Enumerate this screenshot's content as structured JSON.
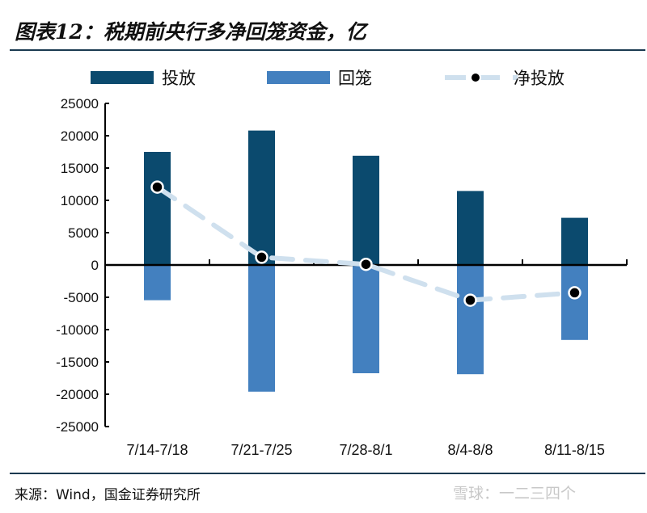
{
  "title": "图表12：税期前央行多净回笼资金，亿",
  "source": "来源：Wind，国金证券研究所",
  "watermark": "雪球：一二三四个",
  "chart_data": {
    "type": "bar",
    "title": "图表12：税期前央行多净回笼资金，亿",
    "categories": [
      "7/14-7/18",
      "7/21-7/25",
      "7/28-8/1",
      "8/4-8/8",
      "8/11-8/15"
    ],
    "series": [
      {
        "name": "投放",
        "type": "bar",
        "color": "#0b4a6e",
        "values": [
          17500,
          20800,
          16900,
          11450,
          7300
        ]
      },
      {
        "name": "回笼",
        "type": "bar",
        "color": "#4380bf",
        "values": [
          -5450,
          -19600,
          -16750,
          -16900,
          -11600
        ]
      },
      {
        "name": "净投放",
        "type": "line",
        "style": "dashed with markers",
        "color": "#cfe0ee",
        "values": [
          12050,
          1200,
          100,
          -5450,
          -4300
        ]
      }
    ],
    "ylim": [
      -25000,
      25000
    ],
    "yticks": [
      25000,
      20000,
      15000,
      10000,
      5000,
      0,
      -5000,
      -10000,
      -15000,
      -20000,
      -25000
    ],
    "grid": false,
    "legend": "top"
  }
}
